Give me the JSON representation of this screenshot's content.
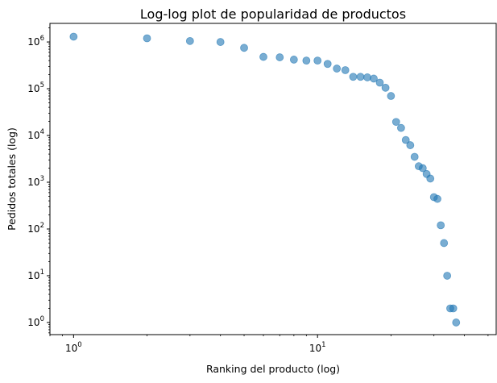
{
  "chart_data": {
    "type": "scatter",
    "title": "Log-log plot de popularidad de productos",
    "xlabel": "Ranking del producto (log)",
    "ylabel": "Pedidos totales (log)",
    "xscale": "log",
    "yscale": "log",
    "xlim": [
      0.8,
      54
    ],
    "ylim": [
      0.55,
      2500000
    ],
    "grid": false,
    "point_color": "#1f77b4",
    "point_opacity": 0.6,
    "x_ticks": [
      {
        "value": 1,
        "base": "10",
        "exp": "0"
      },
      {
        "value": 10,
        "base": "10",
        "exp": "1"
      }
    ],
    "y_ticks": [
      {
        "value": 1,
        "base": "10",
        "exp": "0"
      },
      {
        "value": 10,
        "base": "10",
        "exp": "1"
      },
      {
        "value": 100,
        "base": "10",
        "exp": "2"
      },
      {
        "value": 1000,
        "base": "10",
        "exp": "3"
      },
      {
        "value": 10000,
        "base": "10",
        "exp": "4"
      },
      {
        "value": 100000,
        "base": "10",
        "exp": "5"
      },
      {
        "value": 1000000,
        "base": "10",
        "exp": "6"
      }
    ],
    "points": [
      {
        "x": 1,
        "y": 1300000
      },
      {
        "x": 2,
        "y": 1200000
      },
      {
        "x": 3,
        "y": 1050000
      },
      {
        "x": 4,
        "y": 1000000
      },
      {
        "x": 5,
        "y": 750000
      },
      {
        "x": 6,
        "y": 480000
      },
      {
        "x": 7,
        "y": 470000
      },
      {
        "x": 8,
        "y": 420000
      },
      {
        "x": 9,
        "y": 400000
      },
      {
        "x": 10,
        "y": 400000
      },
      {
        "x": 11,
        "y": 340000
      },
      {
        "x": 12,
        "y": 270000
      },
      {
        "x": 13,
        "y": 250000
      },
      {
        "x": 14,
        "y": 180000
      },
      {
        "x": 15,
        "y": 180000
      },
      {
        "x": 16,
        "y": 175000
      },
      {
        "x": 17,
        "y": 165000
      },
      {
        "x": 18,
        "y": 135000
      },
      {
        "x": 19,
        "y": 105000
      },
      {
        "x": 20,
        "y": 70000
      },
      {
        "x": 21,
        "y": 19500
      },
      {
        "x": 22,
        "y": 14500
      },
      {
        "x": 23,
        "y": 8000
      },
      {
        "x": 24,
        "y": 6200
      },
      {
        "x": 25,
        "y": 3500
      },
      {
        "x": 26,
        "y": 2200
      },
      {
        "x": 27,
        "y": 2000
      },
      {
        "x": 28,
        "y": 1500
      },
      {
        "x": 29,
        "y": 1200
      },
      {
        "x": 30,
        "y": 480
      },
      {
        "x": 31,
        "y": 440
      },
      {
        "x": 32,
        "y": 120
      },
      {
        "x": 33,
        "y": 50
      },
      {
        "x": 34,
        "y": 10
      },
      {
        "x": 35,
        "y": 2
      },
      {
        "x": 36,
        "y": 2
      },
      {
        "x": 37,
        "y": 1
      }
    ]
  }
}
